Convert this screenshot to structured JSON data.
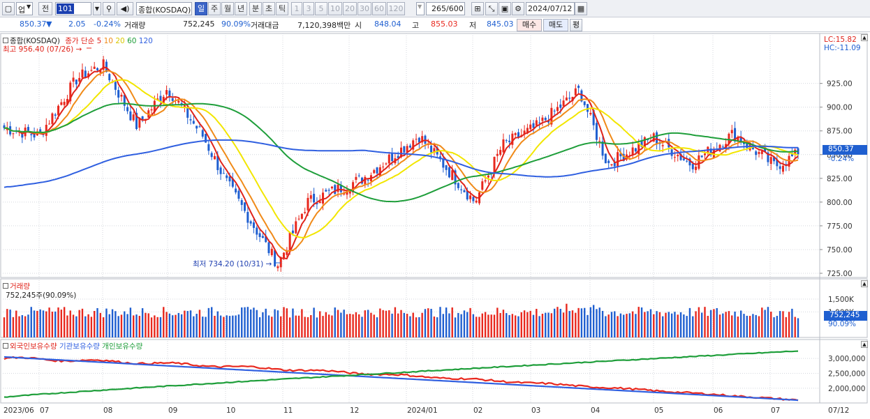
{
  "toolbar": {
    "market": "업",
    "prev": "전",
    "code": "101",
    "name": "종합(KOSDAQ)",
    "periods": [
      "일",
      "주",
      "월",
      "년",
      "분",
      "초",
      "틱"
    ],
    "active_period": "일",
    "intervals": [
      "1",
      "3",
      "5",
      "10",
      "20",
      "30",
      "60",
      "120"
    ],
    "count": "265/600",
    "date": "2024/07/12"
  },
  "infobar": {
    "price": "850.37",
    "arrow": "▼",
    "change": "2.05",
    "change_pct": "-0.24%",
    "volume_label": "거래량",
    "volume": "752,245",
    "volume_pct": "90.09%",
    "amount_label": "거래대금",
    "amount": "7,120,398백만",
    "open_label": "시",
    "open": "848.04",
    "high_label": "고",
    "high": "855.03",
    "low_label": "저",
    "low": "845.03",
    "buy": "매수",
    "sell": "매도",
    "avg": "평"
  },
  "price_panel": {
    "title": "종합(KOSDAQ)",
    "ma_label": "종가 단순",
    "ma_periods": [
      "5",
      "10",
      "20",
      "60",
      "120"
    ],
    "high_label": "최고 956.40 (07/26)",
    "low_label": "최저 734.20 (10/31)",
    "lc": "LC:15.82",
    "hc": "HC:-11.09",
    "last_tag": "850.37",
    "last_pct": "-0.24%",
    "y_ticks": [
      "925.00",
      "900.00",
      "875.00",
      "850.00",
      "825.00",
      "800.00",
      "775.00",
      "750.00",
      "725.00"
    ]
  },
  "volume_panel": {
    "title": "거래량",
    "sub": "752,245주(90.09%)",
    "ticks": [
      "1,500K",
      "1,000K"
    ],
    "tag": "752,245",
    "tag_pct": "90.09%"
  },
  "holding_panel": {
    "legend": [
      "외국인보유수량",
      "기관보유수량",
      "개인보유수량"
    ],
    "ticks": [
      "3,000,000",
      "2,500,000",
      "2,000,000"
    ]
  },
  "x_labels": [
    "2023/06",
    "07",
    "08",
    "09",
    "10",
    "11",
    "12",
    "2024/01",
    "02",
    "03",
    "04",
    "05",
    "06",
    "07",
    "07/12"
  ],
  "colors": {
    "up": "#e8281e",
    "down": "#1f5fd0",
    "ma5": "#e0231a",
    "ma10": "#f08a18",
    "ma20": "#f2e600",
    "ma60": "#1e9e3a",
    "ma120": "#2f5fe0"
  },
  "chart_data": {
    "type": "candlestick",
    "x_range": [
      "2023/06",
      "2024/07/12"
    ],
    "price_ylim": [
      725,
      960
    ],
    "close_path": [
      [
        "2023/06",
        878
      ],
      [
        "2023/07",
        870
      ],
      [
        "2023/07 late",
        930
      ],
      [
        "2023/08 early",
        945
      ],
      [
        "2023/08 mid",
        880
      ],
      [
        "2023/09 early",
        920
      ],
      [
        "2023/09 late",
        870
      ],
      [
        "2023/10 mid",
        820
      ],
      [
        "2023/10/31",
        734.2
      ],
      [
        "2023/11 mid",
        800
      ],
      [
        "2023/12",
        825
      ],
      [
        "2024/01 early",
        870
      ],
      [
        "2024/01 late",
        835
      ],
      [
        "2024/02 early",
        800
      ],
      [
        "2024/02 late",
        860
      ],
      [
        "2024/03",
        880
      ],
      [
        "2024/03 late",
        918
      ],
      [
        "2024/04 mid",
        840
      ],
      [
        "2024/05",
        868
      ],
      [
        "2024/05 late",
        840
      ],
      [
        "2024/06",
        872
      ],
      [
        "2024/07 early",
        838
      ],
      [
        "2024/07/12",
        850.37
      ]
    ],
    "high": {
      "value": 956.4,
      "date": "07/26"
    },
    "low": {
      "value": 734.2,
      "date": "10/31"
    },
    "moving_averages": [
      "5",
      "10",
      "20",
      "60",
      "120"
    ],
    "last": {
      "close": 850.37,
      "change": -2.05,
      "pct": -0.24,
      "open": 848.04,
      "high": 855.03,
      "low": 845.03,
      "volume": 752245
    },
    "volume_ylim": [
      0,
      1800000
    ],
    "holdings": {
      "series": [
        {
          "name": "외국인보유수량",
          "start": 3000000,
          "end": 1600000
        },
        {
          "name": "기관보유수량",
          "start": 3050000,
          "end": 1600000
        },
        {
          "name": "개인보유수량",
          "start": 1700000,
          "end": 3250000
        }
      ],
      "ylim": [
        1600000,
        3400000
      ]
    }
  }
}
